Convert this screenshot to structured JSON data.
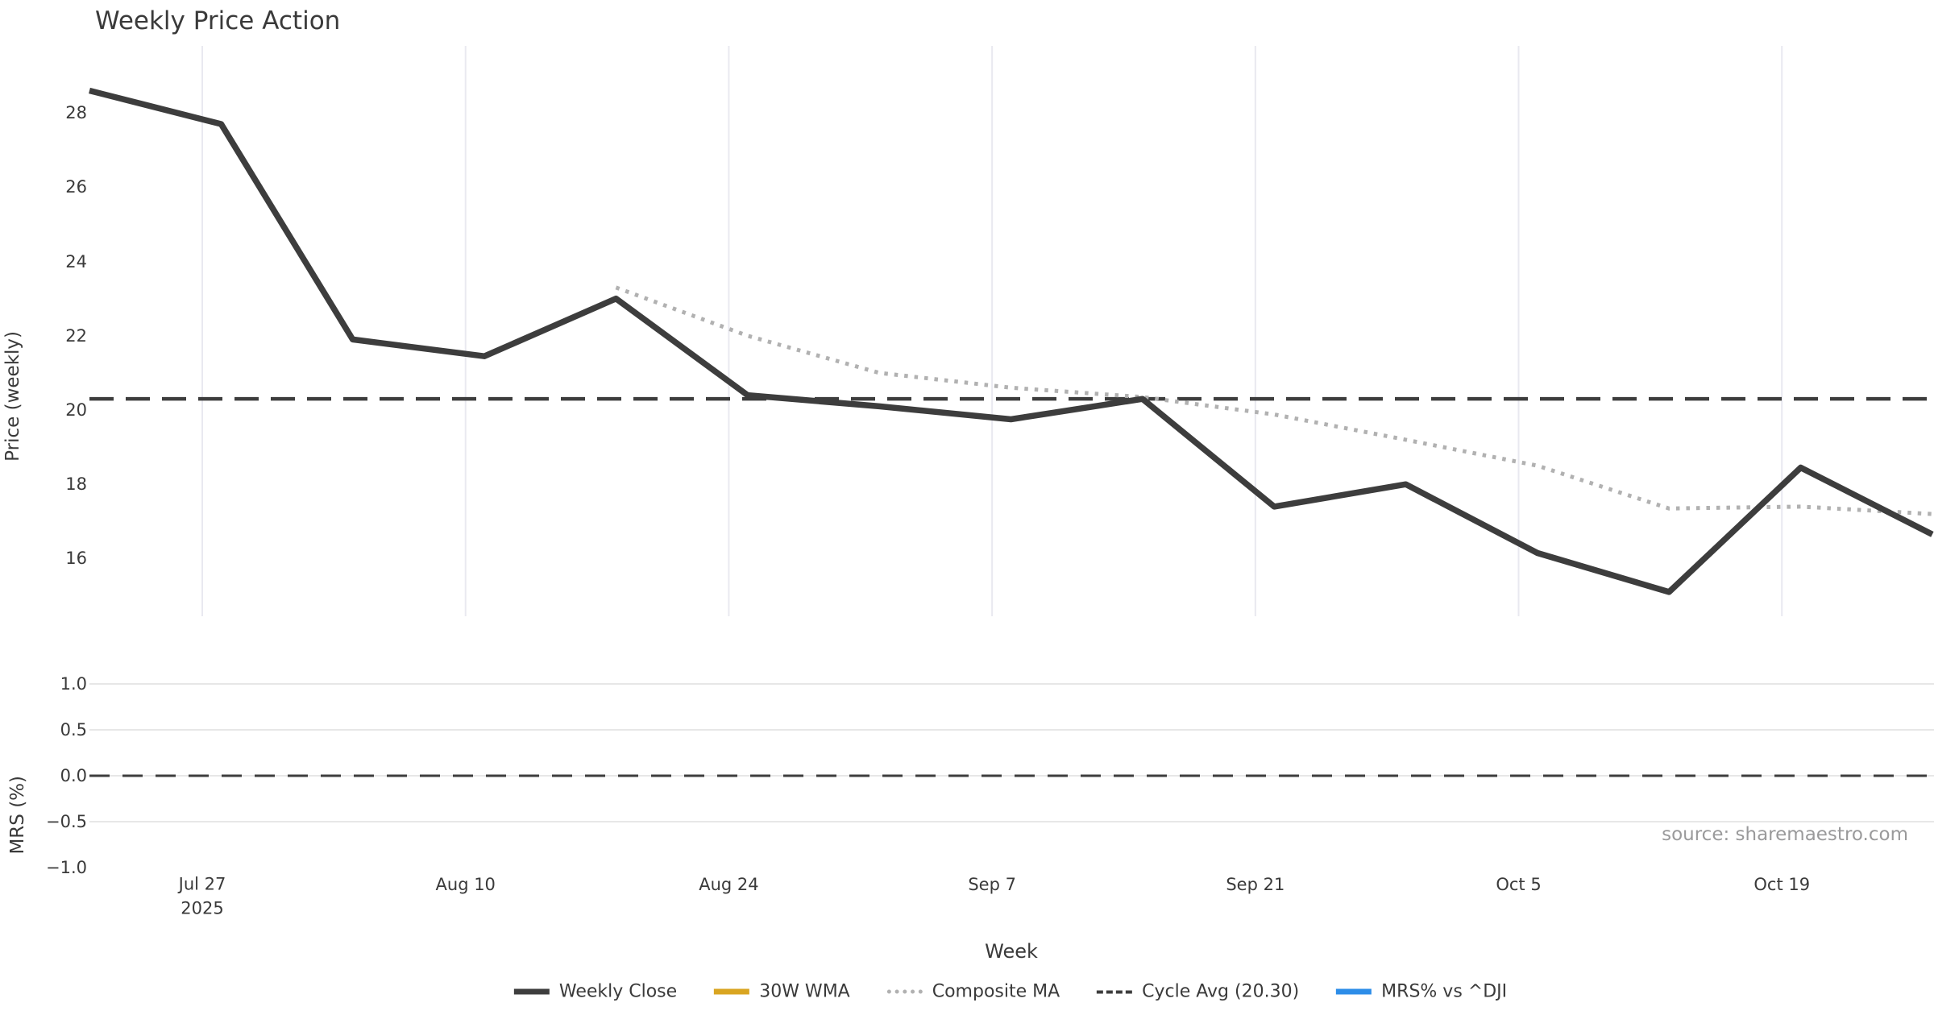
{
  "chart_data": {
    "type": "line",
    "title": "Weekly Price Action",
    "xlabel": "Week",
    "source": "source: sharemaestro.com",
    "x_axis": {
      "start_date": "Jul 21",
      "end_date": "Oct 27",
      "tick_labels": [
        "Jul 27",
        "Aug 10",
        "Aug 24",
        "Sep 7",
        "Sep 21",
        "Oct 5",
        "Oct 19"
      ],
      "tick_day_offsets": [
        6,
        20,
        34,
        48,
        62,
        76,
        90
      ],
      "first_tick_second_line": "2025",
      "grid": "vertical-only"
    },
    "price_panel": {
      "ylabel": "Price (weekly)",
      "ytick_values": [
        28,
        26,
        24,
        22,
        20,
        18,
        16
      ],
      "ytick_labels": [
        "28",
        "26",
        "24",
        "22",
        "20",
        "18",
        "16"
      ],
      "ylim": [
        14.45,
        29.8
      ],
      "grid": "none-horizontal"
    },
    "mrs_panel": {
      "ylabel": "MRS (%)",
      "ytick_values": [
        1.0,
        0.5,
        0.0,
        -0.5,
        -1.0
      ],
      "ytick_labels": [
        "1.0",
        "0.5",
        "0.0",
        "−0.5",
        "−1.0"
      ],
      "gridline_values": [
        1.0,
        0.5,
        0.0,
        -0.5
      ],
      "ylim": [
        -1.15,
        1.15
      ],
      "zero_line": 0.0
    },
    "series": [
      {
        "name": "Weekly Close",
        "dates": [
          "Jul 21",
          "Jul 28",
          "Aug 4",
          "Aug 11",
          "Aug 18",
          "Aug 25",
          "Sep 1",
          "Sep 8",
          "Sep 15",
          "Sep 22",
          "Sep 29",
          "Oct 6",
          "Oct 13",
          "Oct 20",
          "Oct 27"
        ],
        "day_offsets": [
          0,
          7,
          14,
          21,
          28,
          35,
          42,
          49,
          56,
          63,
          70,
          77,
          84,
          91,
          98
        ],
        "values": [
          28.6,
          27.7,
          21.9,
          21.45,
          23.0,
          20.4,
          20.1,
          19.75,
          20.3,
          17.4,
          18.0,
          16.15,
          15.1,
          18.45,
          16.65
        ]
      },
      {
        "name": "Composite MA",
        "dates": [
          "Aug 18",
          "Aug 25",
          "Sep 1",
          "Sep 8",
          "Sep 15",
          "Sep 22",
          "Sep 29",
          "Oct 6",
          "Oct 13",
          "Oct 20",
          "Oct 27"
        ],
        "day_offsets": [
          28,
          35,
          42,
          49,
          56,
          63,
          70,
          77,
          84,
          91,
          98
        ],
        "values": [
          23.3,
          22.0,
          21.0,
          20.6,
          20.35,
          19.88,
          19.2,
          18.5,
          17.35,
          17.4,
          17.2
        ]
      },
      {
        "name": "Cycle Avg",
        "value": 20.3
      },
      {
        "name": "MRS% vs ^DJI",
        "zero_reference": 0.0
      }
    ],
    "legend": {
      "position": "bottom-center",
      "items": [
        {
          "label": "Weekly Close",
          "color": "#3d3d3d",
          "style": "solid",
          "weight": 7
        },
        {
          "label": "30W WMA",
          "color": "#d9a521",
          "style": "solid",
          "weight": 7
        },
        {
          "label": "Composite MA",
          "color": "#b1b1b1",
          "style": "dotted",
          "weight": 5
        },
        {
          "label": "Cycle Avg (20.30)",
          "color": "#3d3d3d",
          "style": "dashed",
          "weight": 4
        },
        {
          "label": "MRS% vs ^DJI",
          "color": "#2d8de8",
          "style": "solid",
          "weight": 7
        }
      ]
    },
    "colors": {
      "background": "#ffffff",
      "text": "#3a3a3a",
      "weekly_close_line": "#3d3d3d",
      "composite_ma_line": "#b1b1b1",
      "cycle_avg_line": "#3d3d3d",
      "mrs_zero_line": "#3d3d3d",
      "grid_vertical": "#e9e9f0",
      "grid_horizontal": "#e7e7e7",
      "source_text": "#9a9a9b"
    }
  }
}
